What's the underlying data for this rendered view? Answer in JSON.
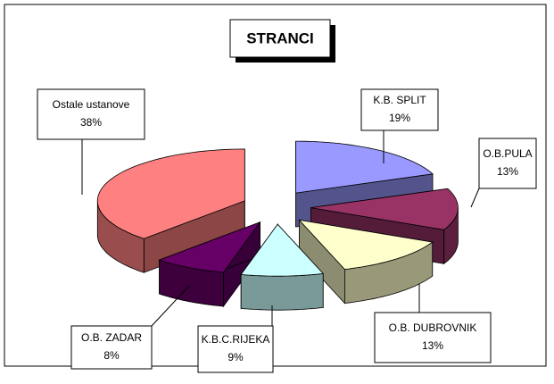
{
  "chart_data": {
    "type": "pie",
    "title": "STRANCI",
    "categories": [
      "K.B. SPLIT",
      "O.B.PULA",
      "O.B. DUBROVNIK",
      "K.B.C.RIJEKA",
      "O.B. ZADAR",
      "Ostale ustanove"
    ],
    "values": [
      19,
      13,
      13,
      9,
      8,
      38
    ],
    "value_labels": [
      "19%",
      "13%",
      "13%",
      "9%",
      "8%",
      "38%"
    ],
    "colors": [
      "#9999ff",
      "#993366",
      "#ffffcc",
      "#ccffff",
      "#660066",
      "#ff8080"
    ]
  }
}
